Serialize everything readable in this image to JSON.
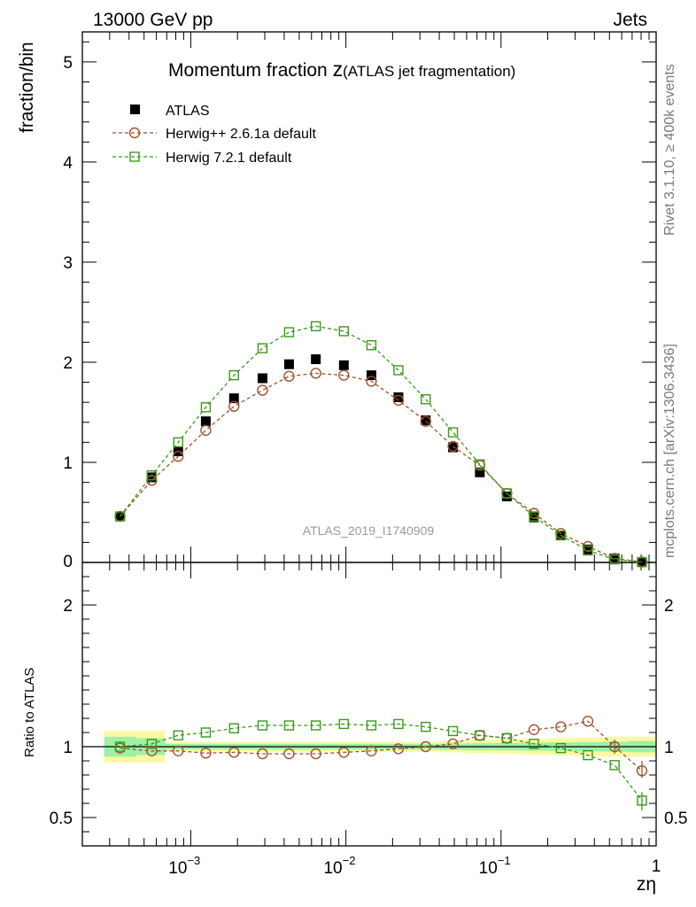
{
  "header": {
    "left": "13000 GeV pp",
    "right": "Jets"
  },
  "side_text": {
    "rivet": "Rivet 3.1.10, ≥ 400k events",
    "mcplots": "mcplots.cern.ch [arXiv:1306.3436]"
  },
  "chart_data": {
    "type": "scatter",
    "title_main": "Momentum fraction ",
    "title_z": "z",
    "title_sub": "(ATLAS jet fragmentation)",
    "watermark": "ATLAS_2019_I1740909",
    "ylabel": "fraction/bin",
    "ratio_ylabel": "Ratio to ATLAS",
    "xlabel": "zη",
    "x_scale": "log",
    "xlim": [
      0.0002,
      1
    ],
    "ylim": [
      0,
      5.3
    ],
    "ratio_ylim": [
      0.3,
      2.3
    ],
    "main_ticks": [
      "0",
      "1",
      "2",
      "3",
      "4",
      "5"
    ],
    "ratio_ticks": [
      "0.5",
      "1",
      "2"
    ],
    "x_tick_labels": [
      "10",
      "-3",
      "10",
      "-2",
      "10",
      "-1",
      "1"
    ],
    "x": [
      0.00035,
      0.00056,
      0.00083,
      0.00125,
      0.0019,
      0.0029,
      0.0043,
      0.0064,
      0.0097,
      0.0146,
      0.0218,
      0.0327,
      0.049,
      0.073,
      0.109,
      0.163,
      0.243,
      0.363,
      0.54,
      0.81
    ],
    "series": [
      {
        "name": "ATLAS",
        "style": "data",
        "color": "#000000",
        "values": [
          0.46,
          0.85,
          1.11,
          1.41,
          1.64,
          1.84,
          1.98,
          2.03,
          1.97,
          1.87,
          1.65,
          1.42,
          1.15,
          0.9,
          0.66,
          0.45,
          0.27,
          0.13,
          0.04,
          0.005
        ]
      },
      {
        "name": "Herwig++ 2.6.1a default",
        "style": "circle",
        "color": "#a0522d",
        "values": [
          0.46,
          0.82,
          1.06,
          1.32,
          1.56,
          1.72,
          1.86,
          1.89,
          1.87,
          1.81,
          1.62,
          1.41,
          1.16,
          0.97,
          0.69,
          0.49,
          0.29,
          0.16,
          0.04,
          0.005
        ],
        "ratio": [
          0.99,
          0.97,
          0.97,
          0.955,
          0.96,
          0.95,
          0.95,
          0.95,
          0.96,
          0.97,
          0.985,
          1.0,
          1.02,
          1.08,
          1.06,
          1.12,
          1.14,
          1.18,
          1.0,
          0.83
        ]
      },
      {
        "name": "Herwig 7.2.1 default",
        "style": "square",
        "color": "#3a9a1a",
        "values": [
          0.46,
          0.87,
          1.2,
          1.55,
          1.87,
          2.14,
          2.3,
          2.36,
          2.31,
          2.17,
          1.92,
          1.63,
          1.3,
          0.98,
          0.69,
          0.46,
          0.27,
          0.12,
          0.03,
          0.003
        ],
        "ratio": [
          1.0,
          1.02,
          1.08,
          1.1,
          1.13,
          1.15,
          1.15,
          1.15,
          1.16,
          1.15,
          1.16,
          1.14,
          1.11,
          1.08,
          1.06,
          1.02,
          0.99,
          0.94,
          0.87,
          0.62
        ]
      }
    ]
  }
}
